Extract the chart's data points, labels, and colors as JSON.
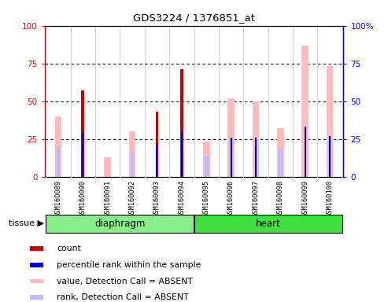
{
  "title": "GDS3224 / 1376851_at",
  "samples": [
    "GSM160089",
    "GSM160090",
    "GSM160091",
    "GSM160092",
    "GSM160093",
    "GSM160094",
    "GSM160095",
    "GSM160096",
    "GSM160097",
    "GSM160098",
    "GSM160099",
    "GSM160100"
  ],
  "count": [
    0,
    57,
    0,
    0,
    43,
    71,
    0,
    0,
    0,
    0,
    0,
    0
  ],
  "percentile_rank": [
    0,
    29,
    0,
    0,
    21,
    30,
    0,
    26,
    26,
    0,
    33,
    27
  ],
  "value_absent": [
    40,
    0,
    13,
    30,
    0,
    0,
    23,
    52,
    50,
    32,
    87,
    73
  ],
  "rank_absent": [
    20,
    0,
    0,
    17,
    0,
    0,
    14,
    26,
    25,
    18,
    0,
    27
  ],
  "count_color": "#cc0000",
  "percentile_rank_color": "#0000cc",
  "value_absent_color": "#ffbbbb",
  "rank_absent_color": "#bbbbff",
  "diaphragm_color": "#88ee88",
  "heart_color": "#44dd44",
  "diaphragm_indices": [
    0,
    1,
    2,
    3,
    4,
    5
  ],
  "heart_indices": [
    6,
    7,
    8,
    9,
    10,
    11
  ],
  "legend_items": [
    [
      "#cc0000",
      "count"
    ],
    [
      "#0000cc",
      "percentile rank within the sample"
    ],
    [
      "#ffbbbb",
      "value, Detection Call = ABSENT"
    ],
    [
      "#bbbbff",
      "rank, Detection Call = ABSENT"
    ]
  ]
}
